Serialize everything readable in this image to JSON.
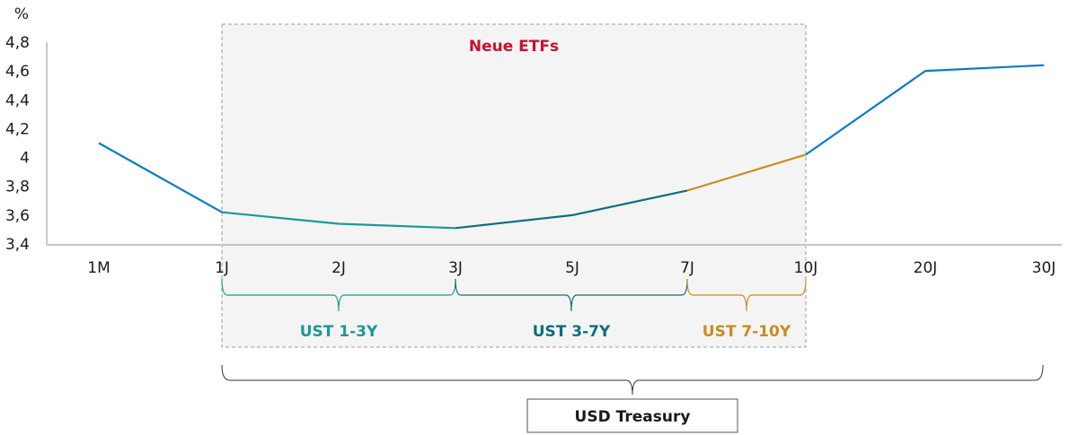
{
  "chart_data": {
    "type": "line",
    "title": "",
    "ylabel": "%",
    "xlabel": "",
    "ylim": [
      3.4,
      4.8
    ],
    "yticks": [
      "3,4",
      "3,6",
      "3,8",
      "4",
      "4,2",
      "4,4",
      "4,6",
      "4,8"
    ],
    "grid": false,
    "categories": [
      "1M",
      "1J",
      "2J",
      "3J",
      "5J",
      "7J",
      "10J",
      "20J",
      "30J"
    ],
    "series": [
      {
        "name": "USD Treasury yield curve",
        "values": [
          4.1,
          3.62,
          3.54,
          3.51,
          3.6,
          3.77,
          4.02,
          4.6,
          4.64
        ]
      }
    ],
    "segments": [
      {
        "name": "USD Treasury (outside)",
        "from": "1M",
        "to": "1J",
        "color": "#0a7cc2"
      },
      {
        "name": "UST 1-3Y",
        "from": "1J",
        "to": "3J",
        "color": "#1a9a95"
      },
      {
        "name": "UST 3-7Y",
        "from": "3J",
        "to": "7J",
        "color": "#0d6e7e"
      },
      {
        "name": "UST 7-10Y",
        "from": "7J",
        "to": "10J",
        "color": "#c98c1e"
      },
      {
        "name": "USD Treasury (outside)",
        "from": "10J",
        "to": "30J",
        "color": "#0a7cc2"
      }
    ],
    "annotations": [
      {
        "text": "Neue ETFs",
        "type": "shaded-region",
        "from": "1J",
        "to": "10J",
        "color": "#c8102e"
      },
      {
        "text": "UST 1-3Y",
        "type": "bracket",
        "from": "1J",
        "to": "3J",
        "color": "#1a9a95"
      },
      {
        "text": "UST 3-7Y",
        "type": "bracket",
        "from": "3J",
        "to": "7J",
        "color": "#0d6e7e"
      },
      {
        "text": "UST 7-10Y",
        "type": "bracket",
        "from": "7J",
        "to": "10J",
        "color": "#c98c1e"
      },
      {
        "text": "USD Treasury",
        "type": "bracket-box",
        "from": "1J",
        "to": "30J",
        "color": "#1a1a1a"
      }
    ]
  },
  "labels": {
    "y_unit": "%",
    "region_title": "Neue ETFs",
    "bracket_1_3": "UST 1-3Y",
    "bracket_3_7": "UST 3-7Y",
    "bracket_7_10": "UST 7-10Y",
    "total_box": "USD Treasury"
  },
  "colors": {
    "line_main": "#0a7cc2",
    "ust_1_3": "#1a9a95",
    "ust_3_7": "#0d6e7e",
    "ust_7_10": "#c98c1e",
    "region_title": "#c8102e",
    "region_fill": "#f4f4f4"
  }
}
